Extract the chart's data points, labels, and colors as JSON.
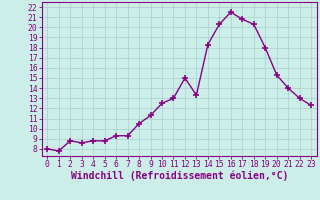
{
  "x": [
    0,
    1,
    2,
    3,
    4,
    5,
    6,
    7,
    8,
    9,
    10,
    11,
    12,
    13,
    14,
    15,
    16,
    17,
    18,
    19,
    20,
    21,
    22,
    23
  ],
  "y": [
    8.0,
    7.8,
    8.8,
    8.6,
    8.8,
    8.8,
    9.3,
    9.3,
    10.5,
    11.3,
    12.5,
    13.0,
    15.0,
    13.3,
    18.3,
    20.3,
    21.5,
    20.8,
    20.3,
    18.0,
    15.3,
    14.0,
    13.0,
    12.3
  ],
  "line_color": "#880088",
  "marker": "+",
  "marker_size": 4,
  "marker_lw": 1.2,
  "bg_color": "#cceee8",
  "grid_color": "#aacccc",
  "xlabel": "Windchill (Refroidissement éolien,°C)",
  "xlabel_color": "#880088",
  "tick_color": "#880088",
  "spine_color": "#880088",
  "xlim": [
    -0.5,
    23.5
  ],
  "ylim": [
    7.3,
    22.5
  ],
  "yticks": [
    8,
    9,
    10,
    11,
    12,
    13,
    14,
    15,
    16,
    17,
    18,
    19,
    20,
    21,
    22
  ],
  "xticks": [
    0,
    1,
    2,
    3,
    4,
    5,
    6,
    7,
    8,
    9,
    10,
    11,
    12,
    13,
    14,
    15,
    16,
    17,
    18,
    19,
    20,
    21,
    22,
    23
  ],
  "tick_label_fontsize": 5.8,
  "xlabel_fontsize": 7.0,
  "linewidth": 1.0
}
